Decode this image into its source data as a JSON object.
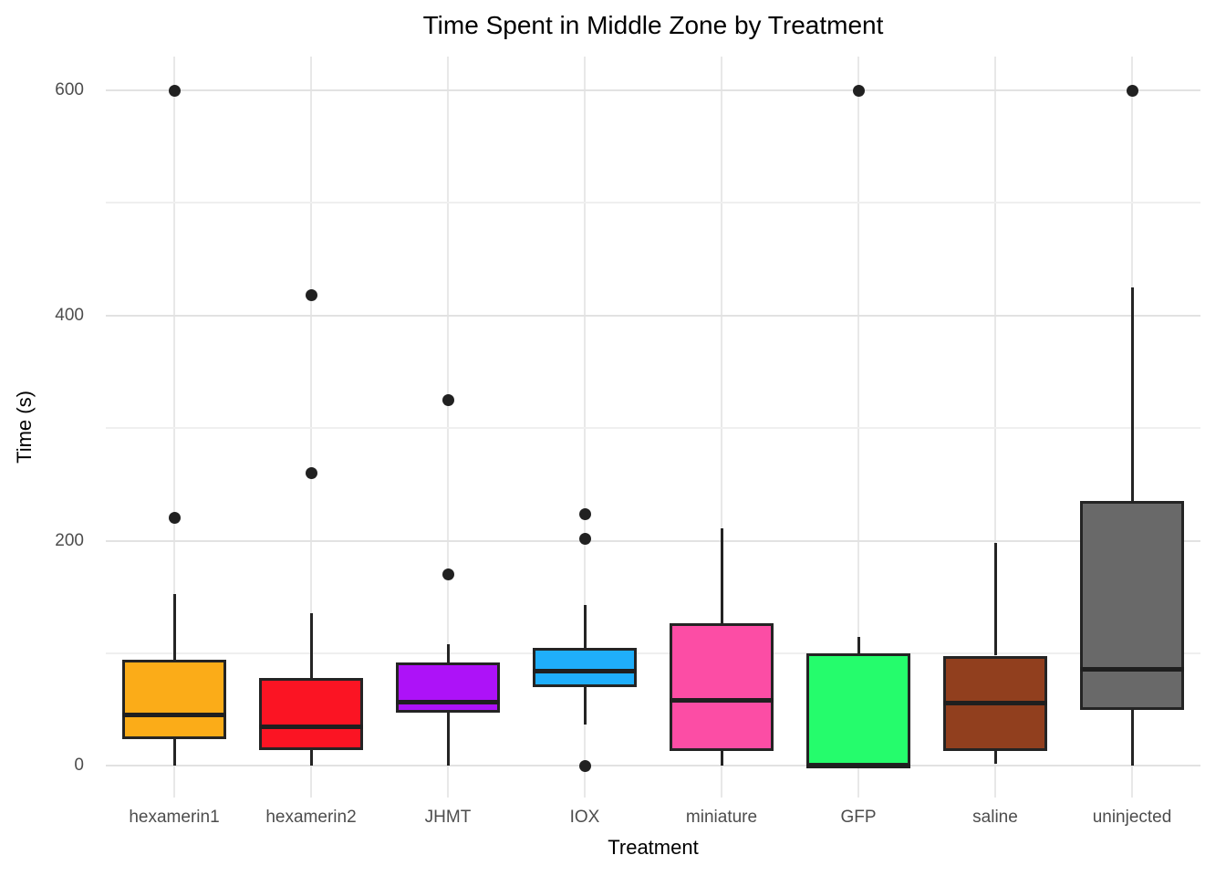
{
  "chart_data": {
    "type": "boxplot",
    "title": "Time Spent in Middle Zone by Treatment",
    "xlabel": "Treatment",
    "ylabel": "Time (s)",
    "ylim": [
      -28,
      630
    ],
    "y_ticks": [
      0,
      200,
      400,
      600
    ],
    "y_minor_ticks": [
      100,
      300,
      500
    ],
    "grid": "on",
    "legend": "none",
    "categories": [
      "hexamerin1",
      "hexamerin2",
      "JHMT",
      "IOX",
      "miniature",
      "GFP",
      "saline",
      "uninjected"
    ],
    "series": [
      {
        "name": "hexamerin1",
        "color": "#FBAC18",
        "whisker_low": 0,
        "q1": 24,
        "median": 45,
        "q3": 94,
        "whisker_high": 153,
        "outliers": [
          220,
          600
        ]
      },
      {
        "name": "hexamerin2",
        "color": "#FB1423",
        "whisker_low": 0,
        "q1": 14,
        "median": 35,
        "q3": 78,
        "whisker_high": 136,
        "outliers": [
          260,
          418
        ]
      },
      {
        "name": "JHMT",
        "color": "#AD12F8",
        "whisker_low": 0,
        "q1": 47,
        "median": 57,
        "q3": 92,
        "whisker_high": 108,
        "outliers": [
          170,
          325
        ]
      },
      {
        "name": "IOX",
        "color": "#1FAEFB",
        "whisker_low": 37,
        "q1": 70,
        "median": 84,
        "q3": 105,
        "whisker_high": 143,
        "outliers": [
          0,
          202,
          224
        ]
      },
      {
        "name": "miniature",
        "color": "#FC4DA5",
        "whisker_low": 0,
        "q1": 13,
        "median": 58,
        "q3": 127,
        "whisker_high": 211,
        "outliers": []
      },
      {
        "name": "GFP",
        "color": "#25FC6C",
        "whisker_low": 0,
        "q1": 0,
        "median": 0,
        "q3": 100,
        "whisker_high": 115,
        "outliers": [
          600
        ]
      },
      {
        "name": "saline",
        "color": "#913F1E",
        "whisker_low": 2,
        "q1": 13,
        "median": 56,
        "q3": 98,
        "whisker_high": 198,
        "outliers": []
      },
      {
        "name": "uninjected",
        "color": "#696969",
        "whisker_low": 0,
        "q1": 50,
        "median": 86,
        "q3": 235,
        "whisker_high": 425,
        "outliers": [
          600
        ]
      }
    ],
    "style": {
      "background": "#ffffff",
      "box_outline": "#242424",
      "median_color": "#1f1f1f",
      "outlier_color": "#212121",
      "gridline_major": "#e2e2e2",
      "gridline_minor": "#efefef",
      "gridline_vertical": "#e8e8e8",
      "tick_label_color": "#4d4d4d",
      "title_color": "#000000"
    }
  }
}
